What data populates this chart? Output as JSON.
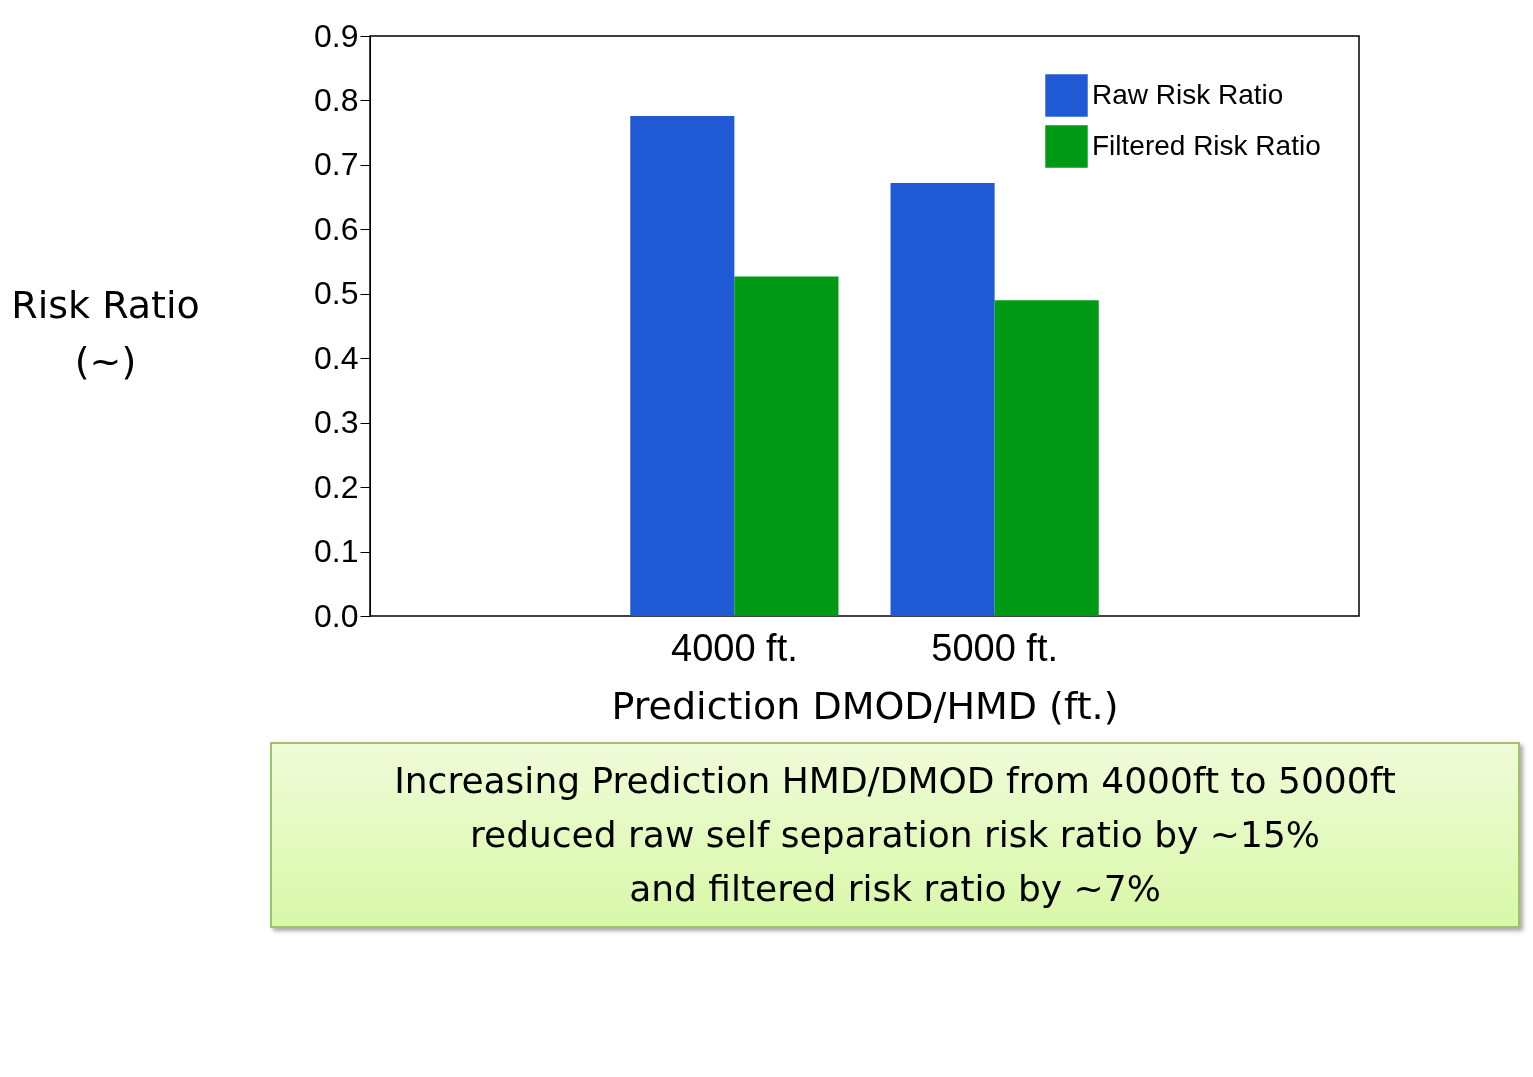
{
  "chart_data": {
    "type": "bar",
    "xlabel": "Prediction DMOD/HMD (ft.)",
    "ylabel": "Risk Ratio\n(~)",
    "categories": [
      "4000 ft.",
      "5000 ft."
    ],
    "series": [
      {
        "name": "Raw Risk Ratio",
        "color": "#2059d4",
        "values": [
          0.776,
          0.672
        ]
      },
      {
        "name": "Filtered Risk Ratio",
        "color": "#009a17",
        "values": [
          0.527,
          0.49
        ]
      }
    ],
    "ylim": [
      0,
      0.9
    ],
    "yticks": [
      {
        "value": 0,
        "label": "0.0"
      },
      0.1,
      0.2,
      0.3,
      0.4,
      0.5,
      0.6,
      0.7,
      0.8,
      0.9
    ],
    "grid": false,
    "legend": "top right",
    "annotations": [
      "Increasing Prediction HMD/DMOD from 4000ft to 5000ft\nreduced raw self separation risk ratio by ~15%\nand filtered risk ratio by ~7%"
    ]
  }
}
